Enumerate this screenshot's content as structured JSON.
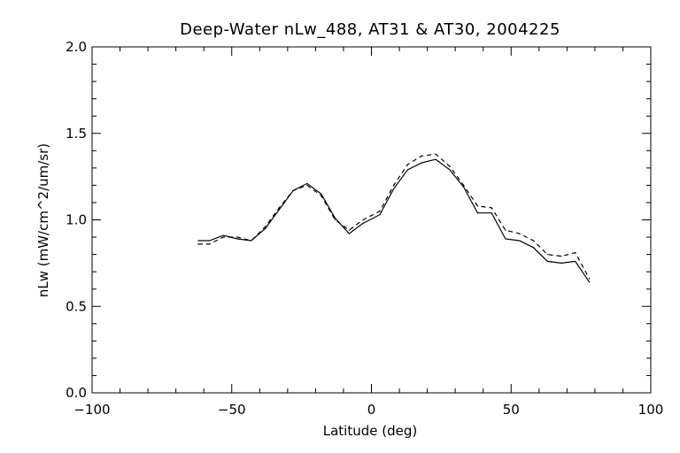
{
  "chart_data": {
    "type": "line",
    "title": "Deep-Water nLw_488, AT31 & AT30, 2004225",
    "xlabel": "Latitude (deg)",
    "ylabel": "nLw (mW/cm^2/um/sr)",
    "xlim": [
      -100,
      100
    ],
    "ylim": [
      0.0,
      2.0
    ],
    "x_ticks": [
      -100,
      -50,
      0,
      50,
      100
    ],
    "x_tick_labels": [
      "−100",
      "−50",
      "0",
      "50",
      "100"
    ],
    "y_ticks": [
      0.0,
      0.5,
      1.0,
      1.5,
      2.0
    ],
    "y_tick_labels": [
      "0.0",
      "0.5",
      "1.0",
      "1.5",
      "2.0"
    ],
    "grid": false,
    "series": [
      {
        "style": "solid",
        "color": "#000000",
        "x": [
          -62,
          -58,
          -53,
          -48,
          -43,
          -38,
          -33,
          -28,
          -23,
          -18,
          -13,
          -8,
          -3,
          3,
          8,
          13,
          18,
          23,
          28,
          33,
          38,
          43,
          48,
          53,
          58,
          63,
          68,
          73,
          78
        ],
        "y": [
          0.88,
          0.88,
          0.91,
          0.89,
          0.88,
          0.95,
          1.06,
          1.17,
          1.21,
          1.15,
          1.01,
          0.92,
          0.98,
          1.03,
          1.18,
          1.29,
          1.33,
          1.35,
          1.29,
          1.19,
          1.04,
          1.04,
          0.89,
          0.88,
          0.84,
          0.76,
          0.75,
          0.76,
          0.64
        ]
      },
      {
        "style": "dashed",
        "color": "#000000",
        "x": [
          -62,
          -58,
          -53,
          -48,
          -43,
          -38,
          -33,
          -28,
          -23,
          -18,
          -13,
          -8,
          -3,
          3,
          8,
          13,
          18,
          23,
          28,
          33,
          38,
          43,
          48,
          53,
          58,
          63,
          68,
          73,
          78
        ],
        "y": [
          0.86,
          0.86,
          0.9,
          0.9,
          0.88,
          0.96,
          1.07,
          1.17,
          1.2,
          1.14,
          1.0,
          0.94,
          1.0,
          1.05,
          1.2,
          1.32,
          1.37,
          1.38,
          1.31,
          1.2,
          1.08,
          1.07,
          0.94,
          0.92,
          0.88,
          0.8,
          0.79,
          0.81,
          0.66
        ]
      }
    ]
  }
}
